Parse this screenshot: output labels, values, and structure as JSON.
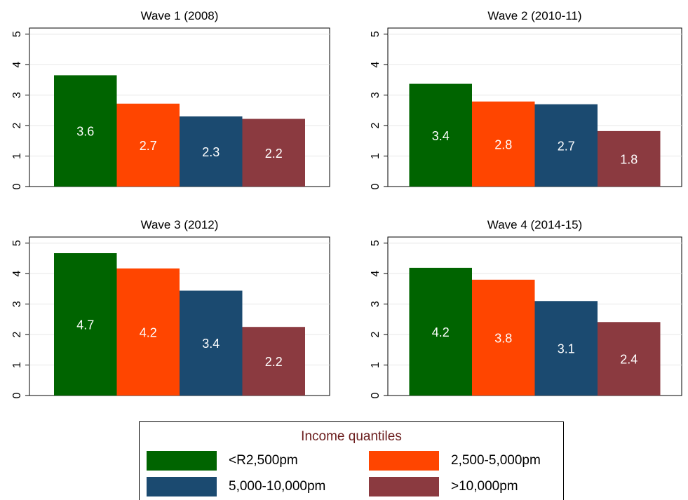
{
  "colors": {
    "series": [
      "#006400",
      "#ff4500",
      "#1b4a70",
      "#8b3a40"
    ],
    "legend_title": "#6b1d1d",
    "bar_label": "#ffffff"
  },
  "legend": {
    "title": "Income quantiles",
    "items": [
      "<R2,500pm",
      "2,500-5,000pm",
      "5,000-10,000pm",
      ">10,000pm"
    ]
  },
  "chart_data": [
    {
      "type": "bar",
      "title": "Wave 1 (2008)",
      "series": [
        {
          "name": "<R2,500pm",
          "values": [
            3.65
          ],
          "label": "3.6"
        },
        {
          "name": "2,500-5,000pm",
          "values": [
            2.72
          ],
          "label": "2.7"
        },
        {
          "name": "5,000-10,000pm",
          "values": [
            2.3
          ],
          "label": "2.3"
        },
        {
          "name": ">10,000pm",
          "values": [
            2.22
          ],
          "label": "2.2"
        }
      ],
      "yticks": [
        0,
        1,
        2,
        3,
        4,
        5
      ],
      "ylim": [
        0,
        5.2
      ],
      "grid": true,
      "xlabel": "",
      "ylabel": ""
    },
    {
      "type": "bar",
      "title": "Wave 2 (2010-11)",
      "series": [
        {
          "name": "<R2,500pm",
          "values": [
            3.37
          ],
          "label": "3.4"
        },
        {
          "name": "2,500-5,000pm",
          "values": [
            2.79
          ],
          "label": "2.8"
        },
        {
          "name": "5,000-10,000pm",
          "values": [
            2.7
          ],
          "label": "2.7"
        },
        {
          "name": ">10,000pm",
          "values": [
            1.82
          ],
          "label": "1.8"
        }
      ],
      "yticks": [
        0,
        1,
        2,
        3,
        4,
        5
      ],
      "ylim": [
        0,
        5.2
      ],
      "grid": true,
      "xlabel": "",
      "ylabel": ""
    },
    {
      "type": "bar",
      "title": "Wave 3 (2012)",
      "series": [
        {
          "name": "<R2,500pm",
          "values": [
            4.67
          ],
          "label": "4.7"
        },
        {
          "name": "2,500-5,000pm",
          "values": [
            4.17
          ],
          "label": "4.2"
        },
        {
          "name": "5,000-10,000pm",
          "values": [
            3.44
          ],
          "label": "3.4"
        },
        {
          "name": ">10,000pm",
          "values": [
            2.25
          ],
          "label": "2.2"
        }
      ],
      "yticks": [
        0,
        1,
        2,
        3,
        4,
        5
      ],
      "ylim": [
        0,
        5.2
      ],
      "grid": true,
      "xlabel": "",
      "ylabel": ""
    },
    {
      "type": "bar",
      "title": "Wave 4 (2014-15)",
      "series": [
        {
          "name": "<R2,500pm",
          "values": [
            4.19
          ],
          "label": "4.2"
        },
        {
          "name": "2,500-5,000pm",
          "values": [
            3.8
          ],
          "label": "3.8"
        },
        {
          "name": "5,000-10,000pm",
          "values": [
            3.1
          ],
          "label": "3.1"
        },
        {
          "name": ">10,000pm",
          "values": [
            2.41
          ],
          "label": "2.4"
        }
      ],
      "yticks": [
        0,
        1,
        2,
        3,
        4,
        5
      ],
      "ylim": [
        0,
        5.2
      ],
      "grid": true,
      "xlabel": "",
      "ylabel": ""
    }
  ]
}
